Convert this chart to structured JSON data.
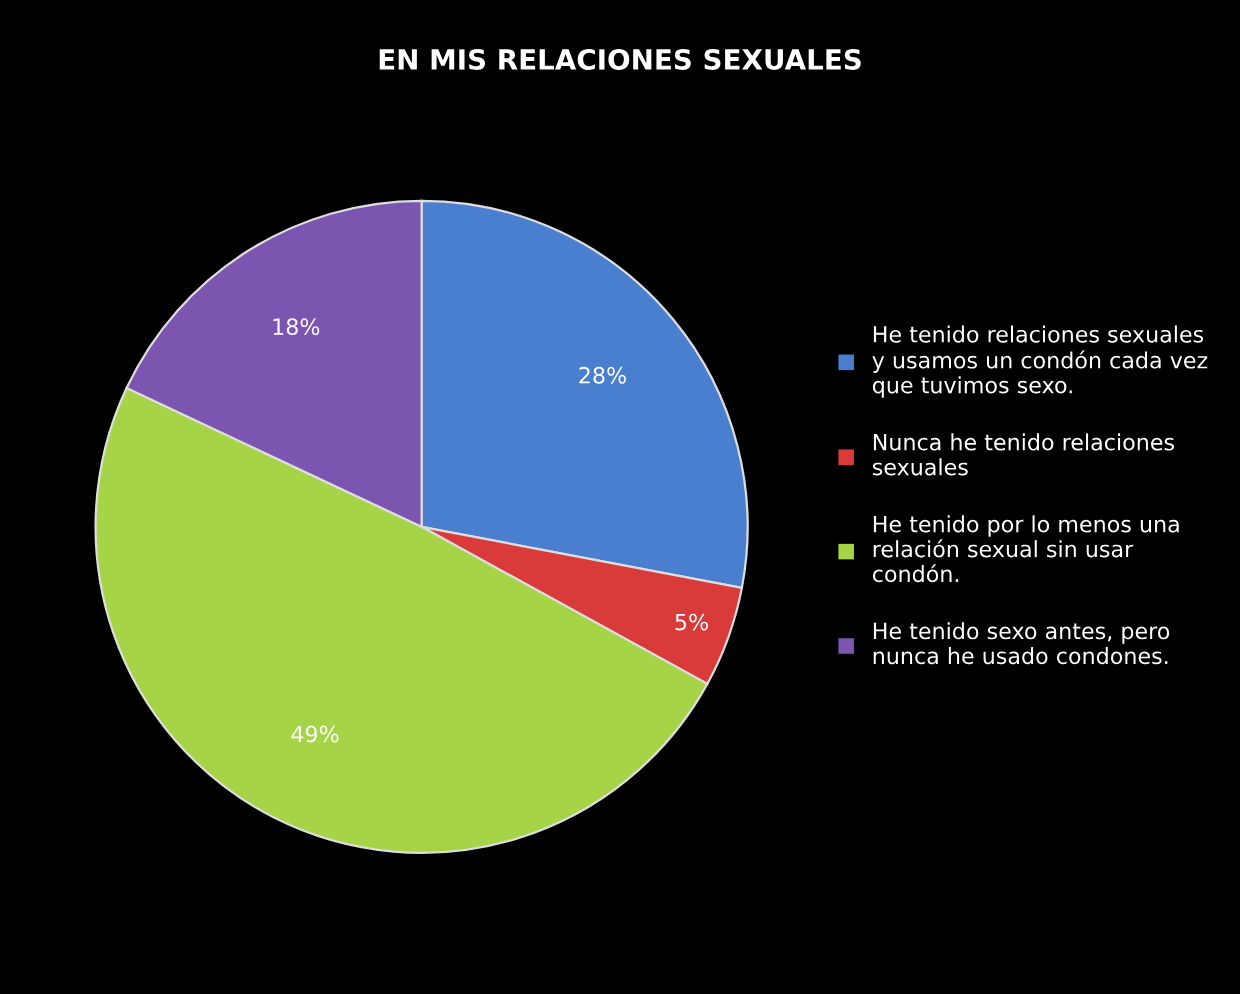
{
  "chart_data": {
    "type": "pie",
    "title": "EN MIS RELACIONES SEXUALES",
    "categories": [
      "He tenido relaciones sexuales y usamos un condón cada vez que tuvimos sexo.",
      "Nunca he tenido relaciones sexuales",
      "He tenido por lo menos una relación sexual sin usar condón.",
      "He tenido sexo antes, pero nunca he usado condones."
    ],
    "values": [
      28,
      5,
      49,
      18
    ],
    "colors": [
      "#4a7fd0",
      "#d93a3a",
      "#a6d447",
      "#7c55b0"
    ],
    "value_labels": [
      "28%",
      "5%",
      "49%",
      "18%"
    ],
    "legend": "right"
  }
}
